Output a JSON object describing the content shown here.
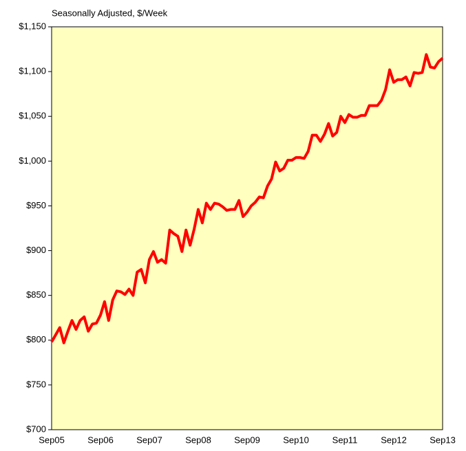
{
  "chart_data": {
    "type": "line",
    "title": "Seasonally Adjusted, $/Week",
    "categories": [
      "Sep05",
      null,
      null,
      null,
      null,
      null,
      null,
      null,
      null,
      null,
      null,
      null,
      "Sep06",
      null,
      null,
      null,
      null,
      null,
      null,
      null,
      null,
      null,
      null,
      null,
      "Sep07",
      null,
      null,
      null,
      null,
      null,
      null,
      null,
      null,
      null,
      null,
      null,
      "Sep08",
      null,
      null,
      null,
      null,
      null,
      null,
      null,
      null,
      null,
      null,
      null,
      "Sep09",
      null,
      null,
      null,
      null,
      null,
      null,
      null,
      null,
      null,
      null,
      null,
      "Sep10",
      null,
      null,
      null,
      null,
      null,
      null,
      null,
      null,
      null,
      null,
      null,
      "Sep11",
      null,
      null,
      null,
      null,
      null,
      null,
      null,
      null,
      null,
      null,
      null,
      "Sep12",
      null,
      null,
      null,
      null,
      null,
      null,
      null,
      null,
      null,
      null,
      null,
      "Sep13"
    ],
    "values": [
      798,
      806,
      814,
      797,
      810,
      822,
      812,
      822,
      826,
      810,
      818,
      819,
      828,
      843,
      822,
      845,
      855,
      854,
      851,
      857,
      850,
      876,
      879,
      864,
      890,
      899,
      887,
      890,
      886,
      923,
      919,
      916,
      899,
      923,
      906,
      924,
      946,
      931,
      953,
      946,
      953,
      952,
      949,
      945,
      946,
      946,
      956,
      938,
      943,
      950,
      954,
      960,
      959,
      972,
      980,
      999,
      989,
      992,
      1001,
      1001,
      1004,
      1004,
      1003,
      1011,
      1029,
      1029,
      1022,
      1030,
      1042,
      1028,
      1032,
      1050,
      1043,
      1052,
      1049,
      1049,
      1051,
      1051,
      1062,
      1062,
      1062,
      1068,
      1080,
      1102,
      1088,
      1091,
      1091,
      1094,
      1084,
      1099,
      1098,
      1099,
      1119,
      1105,
      1104,
      1111,
      1115
    ],
    "color": "#ff0000",
    "ylim": [
      700,
      1150
    ],
    "yticks": [
      {
        "value": 700,
        "label": "$700"
      },
      {
        "value": 750,
        "label": "$750"
      },
      {
        "value": 800,
        "label": "$800"
      },
      {
        "value": 850,
        "label": "$850"
      },
      {
        "value": 900,
        "label": "$900"
      },
      {
        "value": 950,
        "label": "$950"
      },
      {
        "value": 1000,
        "label": "$1,000"
      },
      {
        "value": 1050,
        "label": "$1,050"
      },
      {
        "value": 1100,
        "label": "$1,100"
      },
      {
        "value": 1150,
        "label": "$1,150"
      }
    ],
    "grid": false
  }
}
